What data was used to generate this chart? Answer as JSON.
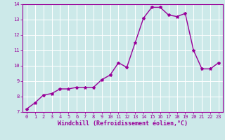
{
  "x": [
    0,
    1,
    2,
    3,
    4,
    5,
    6,
    7,
    8,
    9,
    10,
    11,
    12,
    13,
    14,
    15,
    16,
    17,
    18,
    19,
    20,
    21,
    22,
    23
  ],
  "y": [
    7.2,
    7.6,
    8.1,
    8.2,
    8.5,
    8.5,
    8.6,
    8.6,
    8.6,
    9.1,
    9.4,
    10.2,
    9.9,
    11.5,
    13.1,
    13.8,
    13.8,
    13.3,
    13.2,
    13.4,
    11.0,
    9.8,
    9.8,
    10.2
  ],
  "line_color": "#990099",
  "marker": "*",
  "marker_size": 3,
  "bg_color": "#cce9e9",
  "grid_color": "#ffffff",
  "xlabel": "Windchill (Refroidissement éolien,°C)",
  "xlabel_color": "#990099",
  "tick_color": "#990099",
  "spine_color": "#990099",
  "ylim": [
    7,
    14
  ],
  "xlim": [
    -0.5,
    23.5
  ],
  "yticks": [
    7,
    8,
    9,
    10,
    11,
    12,
    13,
    14
  ],
  "xticks": [
    0,
    1,
    2,
    3,
    4,
    5,
    6,
    7,
    8,
    9,
    10,
    11,
    12,
    13,
    14,
    15,
    16,
    17,
    18,
    19,
    20,
    21,
    22,
    23
  ],
  "tick_fontsize": 5,
  "xlabel_fontsize": 6,
  "linewidth": 1.0
}
